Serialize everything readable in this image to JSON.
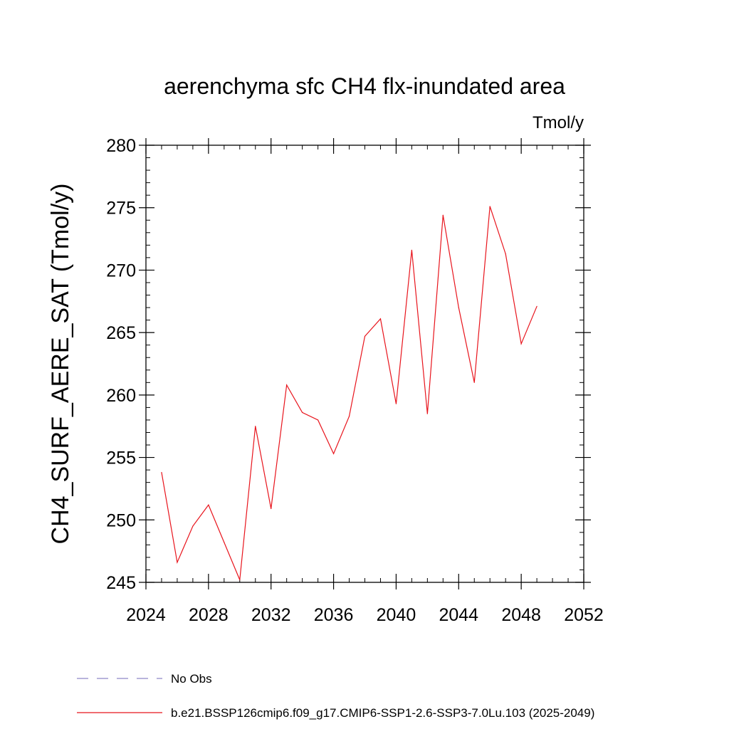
{
  "chart_data": {
    "type": "line",
    "title": "aerenchyma sfc CH4 flx-inundated area",
    "units": "Tmol/y",
    "xlabel": "",
    "ylabel": "CH4_SURF_AERE_SAT  (Tmol/y)",
    "xlim": [
      2024,
      2052
    ],
    "ylim": [
      245,
      280
    ],
    "xticks": [
      "2024",
      "2028",
      "2032",
      "2036",
      "2040",
      "2044",
      "2048",
      "2052"
    ],
    "yticks": [
      "245",
      "250",
      "255",
      "260",
      "265",
      "270",
      "275",
      "280"
    ],
    "grid": false,
    "legend_position": "bottom",
    "series": [
      {
        "name": "b.e21.BSSP126cmip6.f09_g17.CMIP6-SSP1-2.6-SSP3-7.0Lu.103 (2025-2049)",
        "color": "#e8141c",
        "x": [
          2025,
          2026,
          2027,
          2028,
          2029,
          2030,
          2031,
          2032,
          2033,
          2034,
          2035,
          2036,
          2037,
          2038,
          2039,
          2040,
          2041,
          2042,
          2043,
          2044,
          2045,
          2046,
          2047,
          2048,
          2049
        ],
        "y": [
          253.8,
          246.6,
          249.5,
          251.2,
          248.2,
          245.2,
          257.5,
          250.9,
          260.8,
          258.6,
          258.0,
          255.3,
          258.3,
          264.7,
          266.1,
          259.3,
          271.6,
          258.5,
          274.4,
          267.0,
          261.0,
          275.1,
          271.3,
          264.1,
          267.1
        ]
      }
    ],
    "legend": [
      {
        "label": "No Obs",
        "style": "dashed",
        "color": "#8f86c8"
      },
      {
        "label": "b.e21.BSSP126cmip6.f09_g17.CMIP6-SSP1-2.6-SSP3-7.0Lu.103 (2025-2049)",
        "style": "solid",
        "color": "#e8141c"
      }
    ]
  }
}
